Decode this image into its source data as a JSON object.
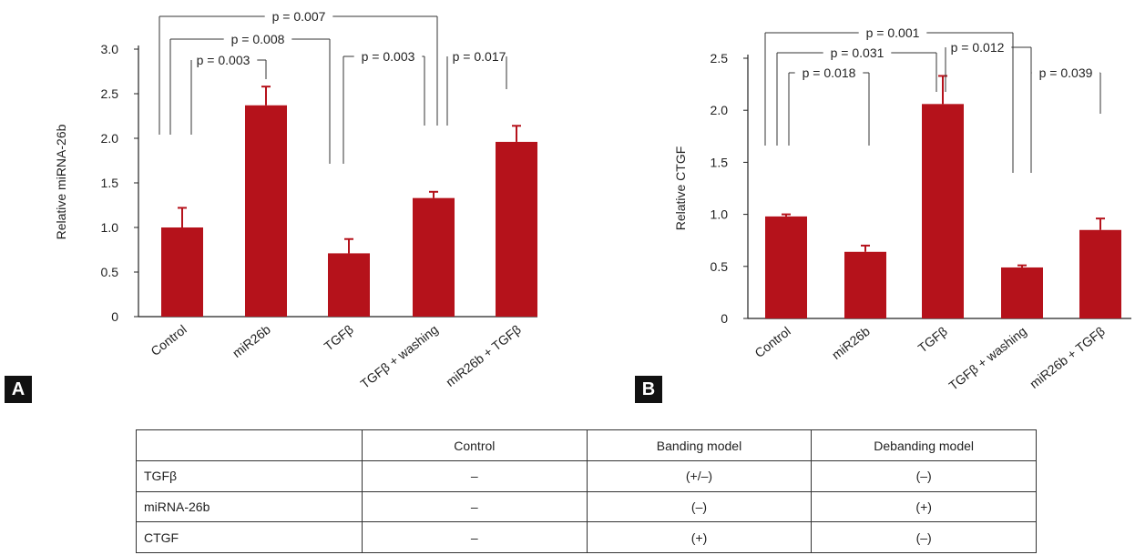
{
  "chart_data": [
    {
      "panel": "A",
      "type": "bar",
      "ylabel": "Relative miRNA-26b",
      "categories": [
        "Control",
        "miR26b",
        "TGFβ",
        "TGFβ + washing",
        "miR26b + TGFβ"
      ],
      "values": [
        1.0,
        2.37,
        0.71,
        1.33,
        1.96
      ],
      "errors": [
        0.22,
        0.21,
        0.16,
        0.07,
        0.18
      ],
      "ylim": [
        0,
        3.0
      ],
      "yticks": [
        "0",
        "0.5",
        "1.0",
        "1.5",
        "2.0",
        "2.5",
        "3.0"
      ],
      "bar_color": "#b5121b",
      "pvalues": [
        "p = 0.007",
        "p = 0.008",
        "p = 0.003",
        "p = 0.003",
        "p = 0.017"
      ]
    },
    {
      "panel": "B",
      "type": "bar",
      "ylabel": "Relative CTGF",
      "categories": [
        "Control",
        "miR26b",
        "TGFβ",
        "TGFβ + washing",
        "miR26b + TGFβ"
      ],
      "values": [
        0.98,
        0.64,
        2.06,
        0.49,
        0.85
      ],
      "errors": [
        0.02,
        0.06,
        0.27,
        0.02,
        0.11
      ],
      "ylim": [
        0,
        2.5
      ],
      "yticks": [
        "0",
        "0.5",
        "1.0",
        "1.5",
        "2.0",
        "2.5"
      ],
      "bar_color": "#b5121b",
      "pvalues": [
        "p = 0.001",
        "p = 0.031",
        "p = 0.012",
        "p = 0.018",
        "p = 0.039"
      ]
    }
  ],
  "panel_labels": [
    "A",
    "B"
  ],
  "table": {
    "headers": [
      "",
      "Control",
      "Banding model",
      "Debanding model"
    ],
    "rows": [
      [
        "TGFβ",
        "–",
        "(+/–)",
        "(–)"
      ],
      [
        "miRNA-26b",
        "–",
        "(–)",
        "(+)"
      ],
      [
        "CTGF",
        "–",
        "(+)",
        "(–)"
      ]
    ]
  }
}
